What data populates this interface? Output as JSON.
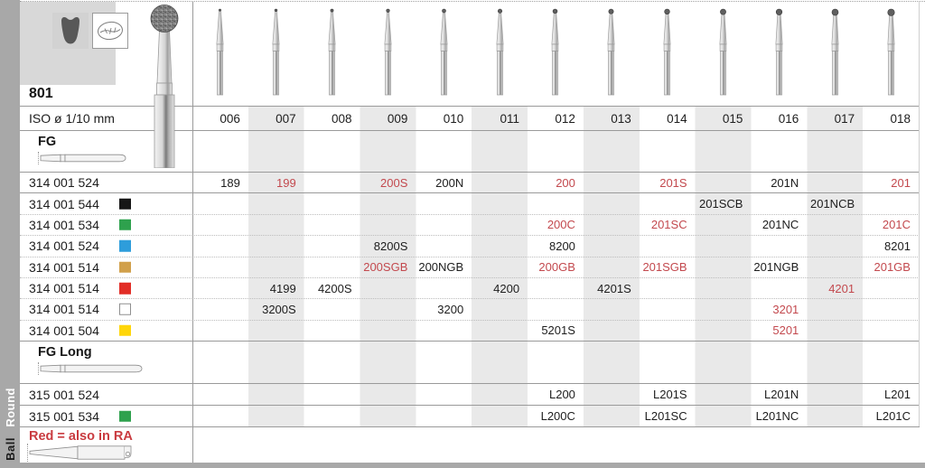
{
  "page": {
    "series_number": "801",
    "iso_row_label": "ISO ø 1/10 mm",
    "note": "Red = also in RA",
    "sidebar_labels": {
      "top": "Round",
      "bottom": "Ball"
    }
  },
  "icons": {
    "tooth_crown": "tooth-crown-icon",
    "tooth_occlusal": "tooth-occlusal-icon",
    "fg_shank": "fg-shank-icon",
    "fg_long_shank": "fg-long-shank-icon",
    "ra_shank": "ra-latch-shank-icon"
  },
  "table": {
    "columns": [
      "006",
      "007",
      "008",
      "009",
      "010",
      "011",
      "012",
      "013",
      "014",
      "015",
      "016",
      "017",
      "018"
    ],
    "striped_columns": [
      "007",
      "009",
      "011",
      "013",
      "015",
      "017"
    ],
    "sections": [
      {
        "name": "FG",
        "rows": [
          {
            "label": "314 001 524",
            "chip": null,
            "cells": [
              {
                "t": "189"
              },
              {
                "t": "199",
                "red": true
              },
              null,
              {
                "t": "200S",
                "red": true
              },
              {
                "t": "200N"
              },
              null,
              {
                "t": "200",
                "red": true
              },
              null,
              {
                "t": "201S",
                "red": true
              },
              null,
              {
                "t": "201N"
              },
              null,
              {
                "t": "201",
                "red": true
              }
            ]
          },
          {
            "label": "314 001 544",
            "chip": "black",
            "cells": [
              null,
              null,
              null,
              null,
              null,
              null,
              null,
              null,
              null,
              {
                "t": "201SCB"
              },
              null,
              {
                "t": "201NCB"
              },
              null
            ]
          },
          {
            "label": "314 001 534",
            "chip": "green",
            "cells": [
              null,
              null,
              null,
              null,
              null,
              null,
              {
                "t": "200C",
                "red": true
              },
              null,
              {
                "t": "201SC",
                "red": true
              },
              null,
              {
                "t": "201NC"
              },
              null,
              {
                "t": "201C",
                "red": true
              }
            ]
          },
          {
            "label": "314 001 524",
            "chip": "blue",
            "cells": [
              null,
              null,
              null,
              {
                "t": "8200S"
              },
              null,
              null,
              {
                "t": "8200"
              },
              null,
              null,
              null,
              null,
              null,
              {
                "t": "8201"
              }
            ]
          },
          {
            "label": "314 001 514",
            "chip": "gold",
            "cells": [
              null,
              null,
              null,
              {
                "t": "200SGB",
                "red": true
              },
              {
                "t": "200NGB"
              },
              null,
              {
                "t": "200GB",
                "red": true
              },
              null,
              {
                "t": "201SGB",
                "red": true
              },
              null,
              {
                "t": "201NGB"
              },
              null,
              {
                "t": "201GB",
                "red": true
              }
            ]
          },
          {
            "label": "314 001 514",
            "chip": "red",
            "cells": [
              null,
              {
                "t": "4199"
              },
              {
                "t": "4200S"
              },
              null,
              null,
              {
                "t": "4200"
              },
              null,
              {
                "t": "4201S"
              },
              null,
              null,
              null,
              {
                "t": "4201",
                "red": true
              },
              null
            ]
          },
          {
            "label": "314 001 514",
            "chip": "white",
            "cells": [
              null,
              {
                "t": "3200S"
              },
              null,
              null,
              {
                "t": "3200"
              },
              null,
              null,
              null,
              null,
              null,
              {
                "t": "3201",
                "red": true
              },
              null,
              null
            ]
          },
          {
            "label": "314 001 504",
            "chip": "yellow",
            "cells": [
              null,
              null,
              null,
              null,
              null,
              null,
              {
                "t": "5201S"
              },
              null,
              null,
              null,
              {
                "t": "5201",
                "red": true
              },
              null,
              null
            ]
          }
        ]
      },
      {
        "name": "FG Long",
        "rows": [
          {
            "label": "315 001 524",
            "chip": null,
            "cells": [
              null,
              null,
              null,
              null,
              null,
              null,
              {
                "t": "L200"
              },
              null,
              {
                "t": "L201S"
              },
              null,
              {
                "t": "L201N"
              },
              null,
              {
                "t": "L201"
              }
            ]
          },
          {
            "label": "315 001 534",
            "chip": "green",
            "cells": [
              null,
              null,
              null,
              null,
              null,
              null,
              {
                "t": "L200C"
              },
              null,
              {
                "t": "L201SC"
              },
              null,
              {
                "t": "L201NC"
              },
              null,
              {
                "t": "L201C"
              }
            ]
          }
        ]
      }
    ]
  },
  "colors": {
    "red_text": "#c3494e",
    "note_red": "#c93b40",
    "stripe": "#e9e9e9",
    "rail_gray": "#a8a8a8",
    "header_box": "#d8d8d8",
    "solid_line": "#9a9a9a",
    "dotted_line": "#bdbdbd",
    "chip_colors": {
      "black": "#161616",
      "green": "#2ea14d",
      "blue": "#2e9ddb",
      "gold": "#d1a04b",
      "red": "#e22d26",
      "white": "#ffffff",
      "yellow": "#ffd60a"
    }
  }
}
